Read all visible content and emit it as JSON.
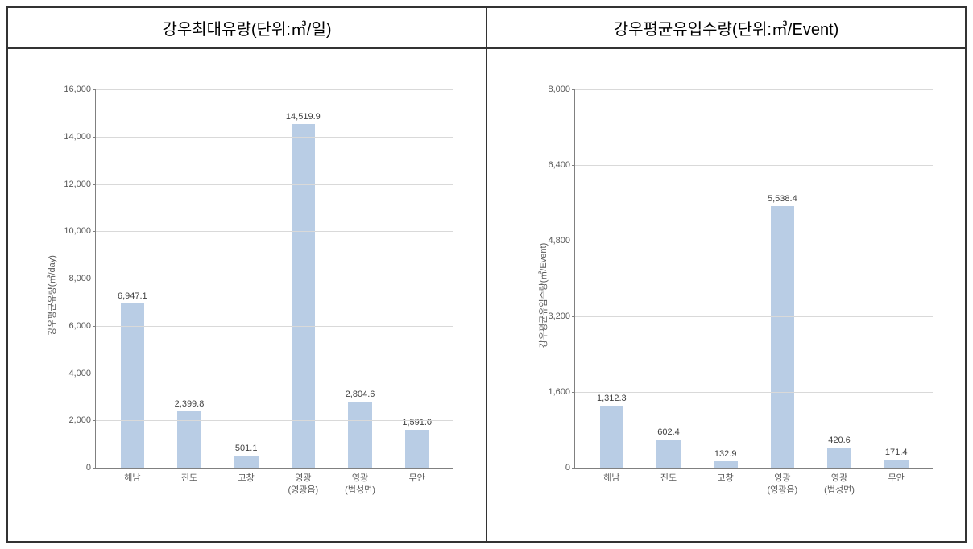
{
  "colors": {
    "bar_fill": "#b9cde5",
    "grid": "#d9d9d9",
    "axis": "#808080",
    "text": "#595959"
  },
  "charts": [
    {
      "title": "강우최대유량(단위:㎥/일)",
      "y_axis_label": "강우평균유량(㎥/day)",
      "ylim": [
        0,
        16000
      ],
      "ytick_step": 2000,
      "categories": [
        "해남",
        "진도",
        "고창",
        "영광\n(영광읍)",
        "영광\n(법성면)",
        "무안"
      ],
      "values": [
        6947.1,
        2399.8,
        501.1,
        14519.9,
        2804.6,
        1591.0
      ],
      "value_labels": [
        "6,947.1",
        "2,399.8",
        "501.1",
        "14,519.9",
        "2,804.6",
        "1,591.0"
      ]
    },
    {
      "title": "강우평균유입수량(단위:㎥/Event)",
      "y_axis_label": "강우평균유입수량(㎥/Event)",
      "ylim": [
        0,
        8000
      ],
      "ytick_step": 1600,
      "categories": [
        "해남",
        "진도",
        "고창",
        "영광\n(영광읍)",
        "영광\n(법성면)",
        "무안"
      ],
      "values": [
        1312.3,
        602.4,
        132.9,
        5538.4,
        420.6,
        171.4
      ],
      "value_labels": [
        "1,312.3",
        "602.4",
        "132.9",
        "5,538.4",
        "420.6",
        "171.4"
      ]
    }
  ]
}
